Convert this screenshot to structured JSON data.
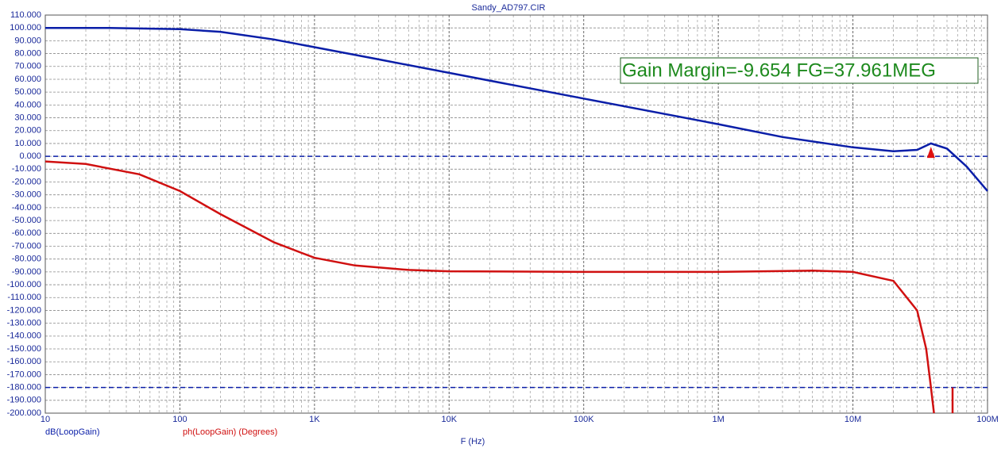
{
  "chart_data": {
    "type": "line",
    "title": "Sandy_AD797.CIR",
    "x_label": "F (Hz)",
    "xscale": "log",
    "xlim": [
      10,
      100000000
    ],
    "ylim": [
      -200,
      110
    ],
    "xticks": [
      10,
      100,
      {
        "value": 1000,
        "label": "1K"
      },
      {
        "value": 10000,
        "label": "10K"
      },
      {
        "value": 100000,
        "label": "100K"
      },
      {
        "value": 1000000,
        "label": "1M"
      },
      {
        "value": 10000000,
        "label": "10M"
      },
      {
        "value": 100000000,
        "label": "100M"
      }
    ],
    "yticks": [
      {
        "value": -200,
        "label": "-200.000"
      },
      {
        "value": -190,
        "label": "-190.000"
      },
      {
        "value": -180,
        "label": "-180.000"
      },
      {
        "value": -170,
        "label": "-170.000"
      },
      {
        "value": -160,
        "label": "-160.000"
      },
      {
        "value": -150,
        "label": "-150.000"
      },
      {
        "value": -140,
        "label": "-140.000"
      },
      {
        "value": -130,
        "label": "-130.000"
      },
      {
        "value": -120,
        "label": "-120.000"
      },
      {
        "value": -110,
        "label": "-110.000"
      },
      {
        "value": -100,
        "label": "-100.000"
      },
      {
        "value": -90,
        "label": "-90.000"
      },
      {
        "value": -80,
        "label": "-80.000"
      },
      {
        "value": -70,
        "label": "-70.000"
      },
      {
        "value": -60,
        "label": "-60.000"
      },
      {
        "value": -50,
        "label": "-50.000"
      },
      {
        "value": -40,
        "label": "-40.000"
      },
      {
        "value": -30,
        "label": "-30.000"
      },
      {
        "value": -20,
        "label": "-20.000"
      },
      {
        "value": -10,
        "label": "-10.000"
      },
      {
        "value": 0,
        "label": "0.000"
      },
      {
        "value": 10,
        "label": "10.000"
      },
      {
        "value": 20,
        "label": "20.000"
      },
      {
        "value": 30,
        "label": "30.000"
      },
      {
        "value": 40,
        "label": "40.000"
      },
      {
        "value": 50,
        "label": "50.000"
      },
      {
        "value": 60,
        "label": "60.000"
      },
      {
        "value": 70,
        "label": "70.000"
      },
      {
        "value": 80,
        "label": "80.000"
      },
      {
        "value": 90,
        "label": "90.000"
      },
      {
        "value": 100,
        "label": "100.000"
      },
      {
        "value": 110,
        "label": "110.000"
      }
    ],
    "grid": true,
    "hlines": [
      0,
      -180
    ],
    "series": [
      {
        "name": "dB(LoopGain)",
        "color": "#0a1ea8",
        "x": [
          10,
          30,
          100,
          200,
          500,
          1000,
          3000,
          10000,
          100000,
          1000000,
          3000000,
          10000000,
          20000000,
          30000000,
          38000000,
          50000000,
          70000000,
          100000000
        ],
        "values": [
          100,
          100,
          99,
          97,
          91,
          85,
          75.5,
          65,
          45,
          25,
          15,
          7,
          4,
          5,
          10,
          6,
          -8,
          -27
        ]
      },
      {
        "name": "ph(LoopGain) (Degrees)",
        "color": "#d01010",
        "x": [
          10,
          20,
          50,
          100,
          200,
          500,
          1000,
          2000,
          5000,
          10000,
          100000,
          1000000,
          5000000,
          10000000,
          20000000,
          30000000,
          35000000,
          38000000,
          40000000,
          45000000,
          55000000,
          55000000
        ],
        "values": [
          -4,
          -6,
          -14,
          -27,
          -45,
          -67,
          -79,
          -85,
          -88.5,
          -89.5,
          -90,
          -90,
          -89,
          -90,
          -97,
          -120,
          -150,
          -180,
          -200,
          null,
          -200,
          -180
        ]
      }
    ],
    "marker_x": 38000000,
    "annotation": "Gain Margin=-9.654 FG=37.961MEG"
  }
}
